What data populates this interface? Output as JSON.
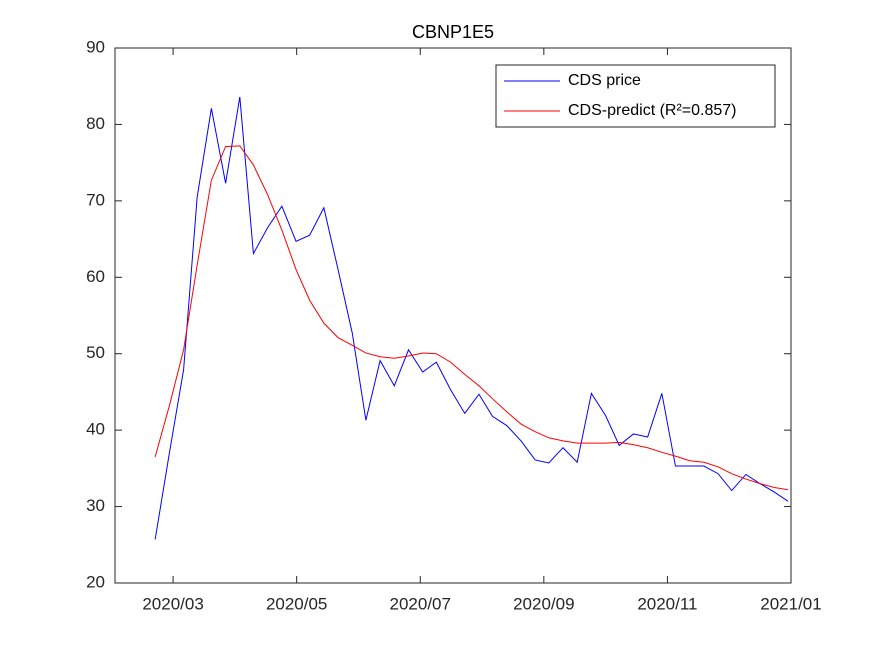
{
  "chart_data": {
    "type": "line",
    "title": "CBNP1E5",
    "x": [
      2.71,
      2.94,
      3.17,
      3.39,
      3.62,
      3.85,
      4.08,
      4.3,
      4.53,
      4.76,
      4.99,
      5.21,
      5.44,
      5.67,
      5.9,
      6.12,
      6.35,
      6.58,
      6.81,
      7.04,
      7.26,
      7.49,
      7.72,
      7.95,
      8.17,
      8.4,
      8.63,
      8.86,
      9.08,
      9.31,
      9.54,
      9.77,
      10.0,
      10.22,
      10.45,
      10.68,
      10.91,
      11.13,
      11.36,
      11.59,
      11.82,
      12.04,
      12.27,
      12.5,
      12.73,
      12.95
    ],
    "series": [
      {
        "name": "CDS price",
        "color": "#0000ff",
        "values": [
          25.7,
          37,
          47.9,
          70.5,
          82.1,
          72.3,
          83.6,
          63.1,
          66.5,
          69.3,
          64.7,
          65.5,
          69.1,
          61,
          52.7,
          41.3,
          49.1,
          45.8,
          50.5,
          47.6,
          48.9,
          45.3,
          42.2,
          44.7,
          41.8,
          40.6,
          38.6,
          36.1,
          35.7,
          37.7,
          35.8,
          44.8,
          41.9,
          38,
          39.5,
          39.1,
          44.8,
          35.3,
          35.3,
          35.3,
          34.3,
          32.1,
          34.2,
          33,
          31.9,
          30.7
        ]
      },
      {
        "name": "CDS-predict (R²=0.857)",
        "color": "#ff0000",
        "values": [
          36.5,
          43.2,
          50.5,
          61.6,
          72.7,
          77.1,
          77.2,
          74.7,
          70.8,
          66.2,
          61,
          57,
          54,
          52.1,
          51.1,
          50.1,
          49.6,
          49.4,
          49.7,
          50.1,
          50,
          48.9,
          47.3,
          45.8,
          44.1,
          42.4,
          40.8,
          39.8,
          39,
          38.6,
          38.3,
          38.3,
          38.3,
          38.4,
          38.1,
          37.7,
          37.1,
          36.6,
          36,
          35.8,
          35.2,
          34.3,
          33.6,
          33,
          32.5,
          32.2
        ]
      }
    ],
    "xlim": [
      2.06,
      13.0
    ],
    "xticks": [
      {
        "value": 3,
        "label": "2020/03"
      },
      {
        "value": 5,
        "label": "2020/05"
      },
      {
        "value": 7,
        "label": "2020/07"
      },
      {
        "value": 9,
        "label": "2020/09"
      },
      {
        "value": 11,
        "label": "2020/11"
      },
      {
        "value": 13,
        "label": "2021/01"
      }
    ],
    "ylim": [
      20,
      90
    ],
    "yticks": [
      20,
      30,
      40,
      50,
      60,
      70,
      80,
      90
    ],
    "legend": "top-right",
    "grid": false
  }
}
